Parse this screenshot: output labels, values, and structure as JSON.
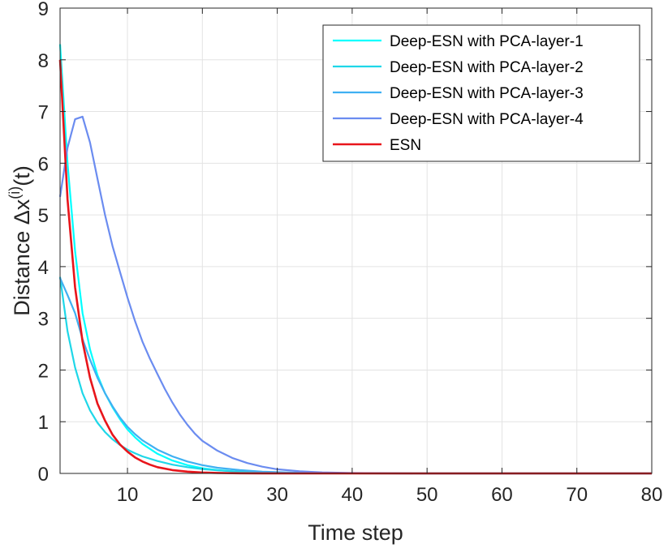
{
  "chart_data": {
    "type": "line",
    "title": "",
    "xlabel": "Time step",
    "ylabel": {
      "prefix": "Distance ",
      "delta": "Δ",
      "var": "x",
      "superscript": "(i)",
      "suffix": "(t)"
    },
    "xlim": [
      1,
      80
    ],
    "ylim": [
      0,
      9
    ],
    "xticks": [
      10,
      20,
      30,
      40,
      50,
      60,
      70,
      80
    ],
    "yticks": [
      0,
      1,
      2,
      3,
      4,
      5,
      6,
      7,
      8,
      9
    ],
    "grid": true,
    "legend_position": "top-right",
    "series": [
      {
        "name": "Deep-ESN with PCA-layer-1",
        "color": "#00ffff",
        "x": [
          1,
          2,
          3,
          4,
          5,
          6,
          7,
          8,
          9,
          10,
          11,
          12,
          14,
          16,
          18,
          20,
          22,
          25,
          28,
          32,
          40,
          50,
          60,
          70,
          80
        ],
        "y": [
          8.3,
          6.0,
          4.3,
          3.1,
          2.4,
          1.9,
          1.55,
          1.28,
          1.05,
          0.85,
          0.7,
          0.57,
          0.38,
          0.25,
          0.16,
          0.1,
          0.065,
          0.03,
          0.013,
          0.004,
          0.001,
          0,
          0,
          0,
          0
        ]
      },
      {
        "name": "Deep-ESN with PCA-layer-2",
        "color": "#1fd7e8",
        "x": [
          1,
          2,
          3,
          4,
          5,
          6,
          7,
          8,
          9,
          10,
          11,
          12,
          14,
          16,
          18,
          20,
          22,
          25,
          28,
          32,
          40,
          50,
          60,
          70,
          80
        ],
        "y": [
          3.8,
          2.75,
          2.05,
          1.55,
          1.22,
          0.98,
          0.8,
          0.66,
          0.55,
          0.46,
          0.39,
          0.33,
          0.24,
          0.17,
          0.12,
          0.085,
          0.06,
          0.035,
          0.02,
          0.008,
          0.001,
          0,
          0,
          0,
          0
        ]
      },
      {
        "name": "Deep-ESN with PCA-layer-3",
        "color": "#3fb0f2",
        "x": [
          1,
          2,
          3,
          4,
          5,
          6,
          7,
          8,
          9,
          10,
          11,
          12,
          14,
          16,
          18,
          20,
          22,
          25,
          28,
          32,
          40,
          50,
          60,
          70,
          80
        ],
        "y": [
          3.78,
          3.45,
          3.1,
          2.6,
          2.2,
          1.85,
          1.55,
          1.3,
          1.08,
          0.9,
          0.76,
          0.64,
          0.46,
          0.33,
          0.23,
          0.16,
          0.11,
          0.065,
          0.035,
          0.015,
          0.002,
          0,
          0,
          0,
          0
        ]
      },
      {
        "name": "Deep-ESN with PCA-layer-4",
        "color": "#6b8cf0",
        "x": [
          1,
          2,
          3,
          4,
          5,
          6,
          7,
          8,
          9,
          10,
          11,
          12,
          13,
          14,
          15,
          16,
          17,
          18,
          19,
          20,
          22,
          24,
          26,
          28,
          30,
          33,
          36,
          40,
          45,
          50,
          60,
          70,
          80
        ],
        "y": [
          5.35,
          6.3,
          6.85,
          6.9,
          6.4,
          5.7,
          5.0,
          4.4,
          3.9,
          3.4,
          2.95,
          2.55,
          2.22,
          1.92,
          1.63,
          1.37,
          1.14,
          0.94,
          0.77,
          0.63,
          0.44,
          0.3,
          0.2,
          0.13,
          0.08,
          0.04,
          0.02,
          0.008,
          0.002,
          0,
          0,
          0,
          0
        ]
      },
      {
        "name": "ESN",
        "color": "#e8151b",
        "x": [
          1,
          2,
          3,
          4,
          5,
          6,
          7,
          8,
          9,
          10,
          11,
          12,
          13,
          14,
          16,
          18,
          20,
          22,
          25,
          28,
          32,
          40,
          50,
          60,
          70,
          80
        ],
        "y": [
          8.0,
          5.3,
          3.6,
          2.55,
          1.85,
          1.35,
          1.02,
          0.75,
          0.56,
          0.42,
          0.31,
          0.23,
          0.17,
          0.12,
          0.065,
          0.035,
          0.018,
          0.009,
          0.003,
          0.001,
          0,
          0,
          0,
          0,
          0,
          0
        ]
      }
    ]
  }
}
